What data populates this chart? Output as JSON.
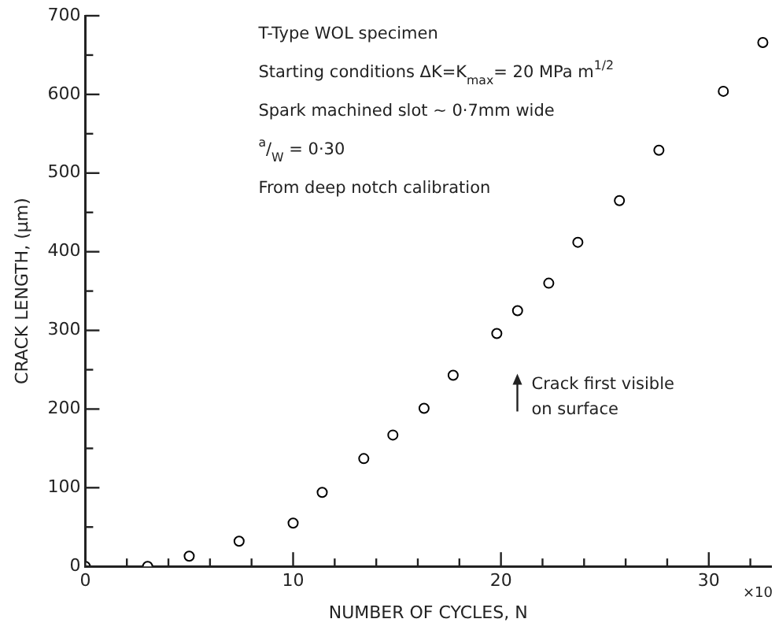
{
  "chart_data": {
    "type": "scatter",
    "xlabel": "NUMBER OF CYCLES, N",
    "ylabel": "CRACK LENGTH, (μm)",
    "x": [
      0,
      3.0,
      5.0,
      7.4,
      10.0,
      11.4,
      13.4,
      14.8,
      16.3,
      17.7,
      19.8,
      20.8,
      22.3,
      23.7,
      25.7,
      27.6,
      30.7,
      32.6
    ],
    "series": [
      {
        "color": "#000000",
        "values": [
          0,
          0,
          13,
          32,
          55,
          94,
          137,
          167,
          201,
          243,
          296,
          325,
          360,
          412,
          465,
          529,
          604,
          666
        ]
      }
    ],
    "xlim": [
      0,
      33
    ],
    "xticks": [
      0,
      {
        "value": 2,
        "label": null
      },
      {
        "value": 4,
        "label": null
      },
      {
        "value": 6,
        "label": null
      },
      {
        "value": 8,
        "label": null
      },
      10,
      {
        "value": 12,
        "label": null
      },
      {
        "value": 14,
        "label": null
      },
      {
        "value": 16,
        "label": null
      },
      {
        "value": 18,
        "label": null
      },
      20,
      {
        "value": 22,
        "label": null
      },
      {
        "value": 24,
        "label": null
      },
      {
        "value": 26,
        "label": null
      },
      {
        "value": 28,
        "label": null
      },
      30,
      {
        "value": 32,
        "label": null
      }
    ],
    "ylim": [
      0,
      700
    ],
    "yticks": [
      0,
      {
        "value": 50,
        "label": null
      },
      100,
      {
        "value": 150,
        "label": null
      },
      200,
      {
        "value": 250,
        "label": null
      },
      300,
      {
        "value": 350,
        "label": null
      },
      400,
      {
        "value": 450,
        "label": null
      },
      500,
      {
        "value": 550,
        "label": null
      },
      600,
      {
        "value": 650,
        "label": null
      },
      700
    ],
    "marker": "circle",
    "grid": false,
    "legend": false,
    "annotations": [
      "T-Type WOL specimen",
      "Starting conditions ΔK=K$_{max}$= 20 MPa m$^{1/2}$",
      "Spark machined slot ~ 0·7mm wide",
      "$^{a}$/$_{W}$ = 0·30",
      "From deep notch calibration",
      "Crack first visible on surface",
      "×10"
    ]
  }
}
